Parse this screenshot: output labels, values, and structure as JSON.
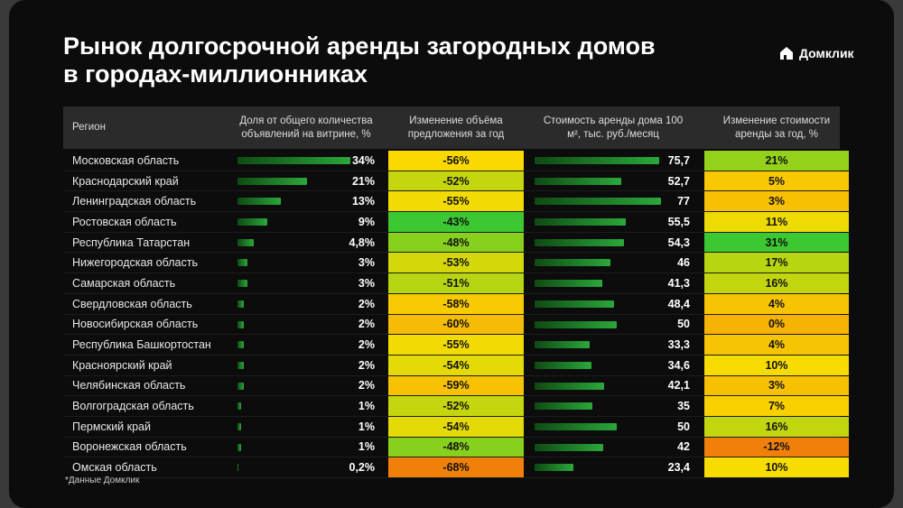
{
  "header": {
    "title_line1": "Рынок долгосрочной аренды загородных домов",
    "title_line2": "в городах-миллионниках",
    "logo": "Домклик"
  },
  "table": {
    "columns": [
      "Регион",
      "Доля от общего количества объявлений на витрине, %",
      "Изменение объёма предложения за год",
      "Стоимость аренды дома 100 м², тыс. руб./месяц",
      "Изменение стоимости аренды за год, %"
    ],
    "rows": [
      {
        "region": "Московская область",
        "share": {
          "value": 34,
          "label": "34%"
        },
        "volume_change": {
          "value": -56,
          "label": "-56%"
        },
        "rent": {
          "value": 75.7,
          "label": "75,7"
        },
        "rent_change": {
          "value": 21,
          "label": "21%"
        }
      },
      {
        "region": "Краснодарский край",
        "share": {
          "value": 21,
          "label": "21%"
        },
        "volume_change": {
          "value": -52,
          "label": "-52%"
        },
        "rent": {
          "value": 52.7,
          "label": "52,7"
        },
        "rent_change": {
          "value": 5,
          "label": "5%"
        }
      },
      {
        "region": "Ленинградская область",
        "share": {
          "value": 13,
          "label": "13%"
        },
        "volume_change": {
          "value": -55,
          "label": "-55%"
        },
        "rent": {
          "value": 77,
          "label": "77"
        },
        "rent_change": {
          "value": 3,
          "label": "3%"
        }
      },
      {
        "region": "Ростовская область",
        "share": {
          "value": 9,
          "label": "9%"
        },
        "volume_change": {
          "value": -43,
          "label": "-43%"
        },
        "rent": {
          "value": 55.5,
          "label": "55,5"
        },
        "rent_change": {
          "value": 11,
          "label": "11%"
        }
      },
      {
        "region": "Республика Татарстан",
        "share": {
          "value": 4.8,
          "label": "4,8%"
        },
        "volume_change": {
          "value": -48,
          "label": "-48%"
        },
        "rent": {
          "value": 54.3,
          "label": "54,3"
        },
        "rent_change": {
          "value": 31,
          "label": "31%"
        }
      },
      {
        "region": "Нижегородская область",
        "share": {
          "value": 3,
          "label": "3%"
        },
        "volume_change": {
          "value": -53,
          "label": "-53%"
        },
        "rent": {
          "value": 46,
          "label": "46"
        },
        "rent_change": {
          "value": 17,
          "label": "17%"
        }
      },
      {
        "region": "Самарская область",
        "share": {
          "value": 3,
          "label": "3%"
        },
        "volume_change": {
          "value": -51,
          "label": "-51%"
        },
        "rent": {
          "value": 41.3,
          "label": "41,3"
        },
        "rent_change": {
          "value": 16,
          "label": "16%"
        }
      },
      {
        "region": "Свердловская область",
        "share": {
          "value": 2,
          "label": "2%"
        },
        "volume_change": {
          "value": -58,
          "label": "-58%"
        },
        "rent": {
          "value": 48.4,
          "label": "48,4"
        },
        "rent_change": {
          "value": 4,
          "label": "4%"
        }
      },
      {
        "region": "Новосибирская область",
        "share": {
          "value": 2,
          "label": "2%"
        },
        "volume_change": {
          "value": -60,
          "label": "-60%"
        },
        "rent": {
          "value": 50,
          "label": "50"
        },
        "rent_change": {
          "value": 0,
          "label": "0%"
        }
      },
      {
        "region": "Республика Башкортостан",
        "share": {
          "value": 2,
          "label": "2%"
        },
        "volume_change": {
          "value": -55,
          "label": "-55%"
        },
        "rent": {
          "value": 33.3,
          "label": "33,3"
        },
        "rent_change": {
          "value": 4,
          "label": "4%"
        }
      },
      {
        "region": "Красноярский край",
        "share": {
          "value": 2,
          "label": "2%"
        },
        "volume_change": {
          "value": -54,
          "label": "-54%"
        },
        "rent": {
          "value": 34.6,
          "label": "34,6"
        },
        "rent_change": {
          "value": 10,
          "label": "10%"
        }
      },
      {
        "region": "Челябинская область",
        "share": {
          "value": 2,
          "label": "2%"
        },
        "volume_change": {
          "value": -59,
          "label": "-59%"
        },
        "rent": {
          "value": 42.1,
          "label": "42,1"
        },
        "rent_change": {
          "value": 3,
          "label": "3%"
        }
      },
      {
        "region": "Волгоградская область",
        "share": {
          "value": 1,
          "label": "1%"
        },
        "volume_change": {
          "value": -52,
          "label": "-52%"
        },
        "rent": {
          "value": 35,
          "label": "35"
        },
        "rent_change": {
          "value": 7,
          "label": "7%"
        }
      },
      {
        "region": "Пермский край",
        "share": {
          "value": 1,
          "label": "1%"
        },
        "volume_change": {
          "value": -54,
          "label": "-54%"
        },
        "rent": {
          "value": 50,
          "label": "50"
        },
        "rent_change": {
          "value": 16,
          "label": "16%"
        }
      },
      {
        "region": "Воронежская область",
        "share": {
          "value": 1,
          "label": "1%"
        },
        "volume_change": {
          "value": -48,
          "label": "-48%"
        },
        "rent": {
          "value": 42,
          "label": "42"
        },
        "rent_change": {
          "value": -12,
          "label": "-12%"
        }
      },
      {
        "region": "Омская область",
        "share": {
          "value": 0.2,
          "label": "0,2%"
        },
        "volume_change": {
          "value": -68,
          "label": "-68%"
        },
        "rent": {
          "value": 23.4,
          "label": "23,4"
        },
        "rent_change": {
          "value": 10,
          "label": "10%"
        }
      }
    ]
  },
  "footnote": "*Данные Домклик"
}
